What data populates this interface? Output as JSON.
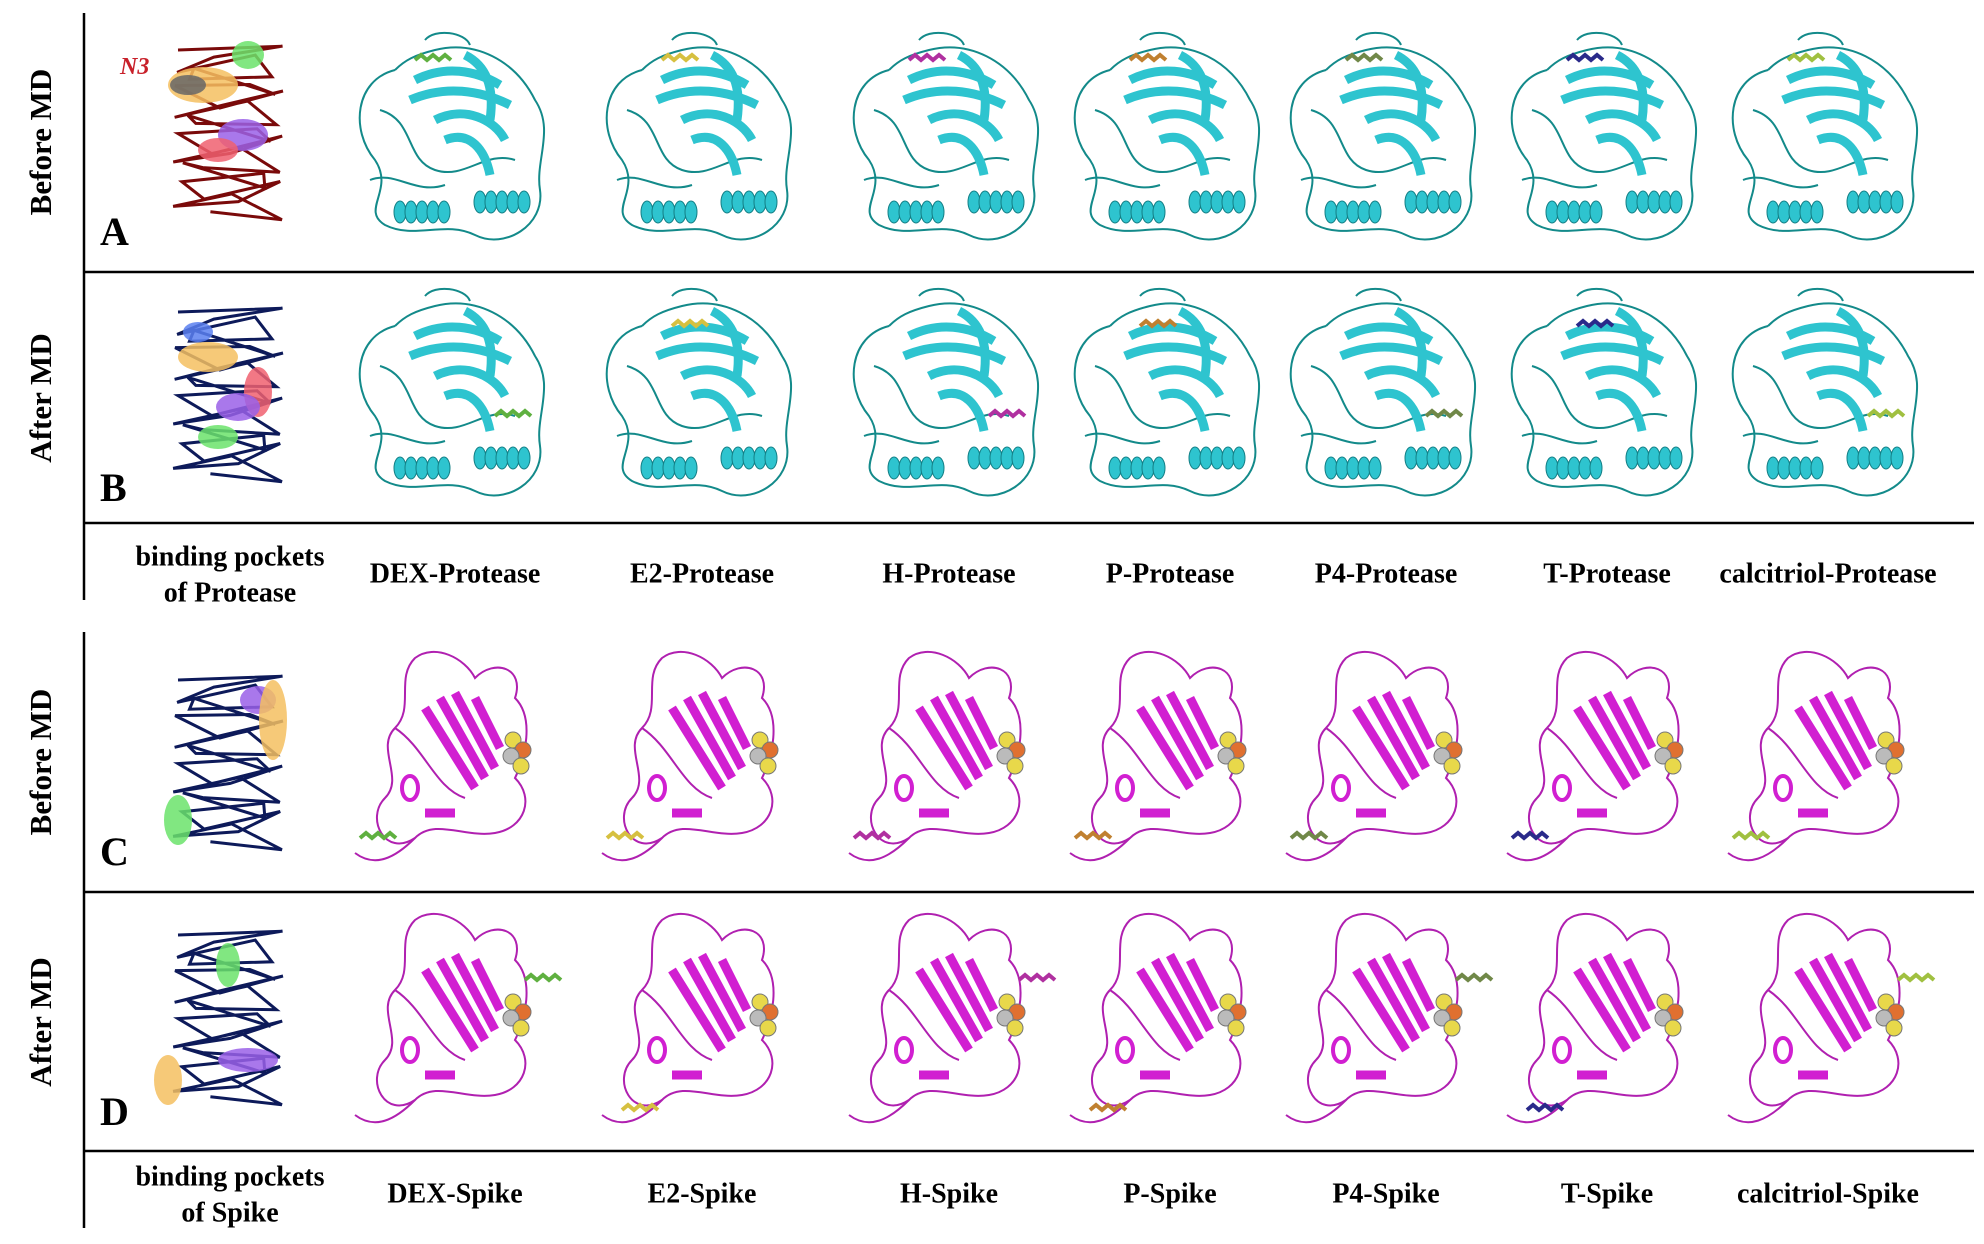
{
  "rows": [
    {
      "label": "Before MD",
      "panel": "A"
    },
    {
      "label": "After MD",
      "panel": "B"
    },
    {
      "label": "Before MD",
      "panel": "C"
    },
    {
      "label": "After MD",
      "panel": "D"
    }
  ],
  "n3_label": "N3",
  "protease_pockets": [
    "binding pockets",
    "of Protease"
  ],
  "protease_captions": [
    "DEX-Protease",
    "E2-Protease",
    "H-Protease",
    "P-Protease",
    "P4-Protease",
    "T-Protease",
    "calcitriol-Protease"
  ],
  "spike_pockets": [
    "binding pockets",
    "of Spike"
  ],
  "spike_captions": [
    "DEX-Spike",
    "E2-Spike",
    "H-Spike",
    "P-Spike",
    "P4-Spike",
    "T-Spike",
    "calcitriol-Spike"
  ]
}
